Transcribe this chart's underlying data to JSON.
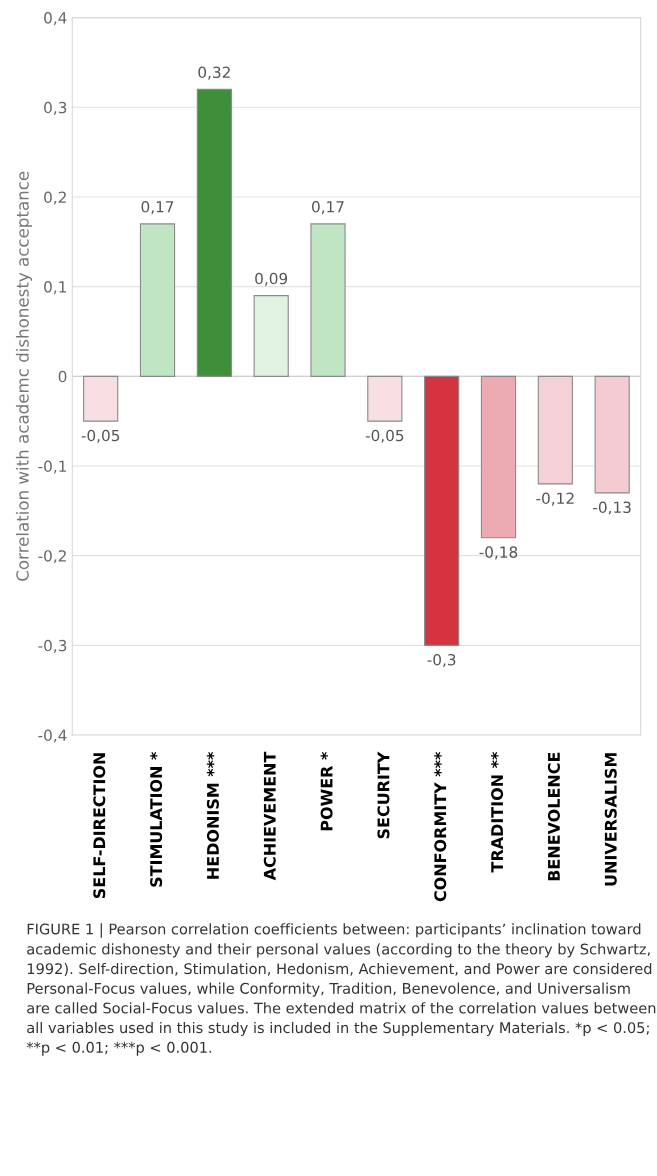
{
  "chart_data": {
    "type": "bar",
    "categories": [
      "SELF-DIRECTION",
      "STIMULATION *",
      "HEDONISM ***",
      "ACHIEVEMENT",
      "POWER *",
      "SECURITY",
      "CONFORMITY ***",
      "TRADITION **",
      "BENEVOLENCE",
      "UNIVERSALISM"
    ],
    "values": [
      -0.05,
      0.17,
      0.32,
      0.09,
      0.17,
      -0.05,
      -0.3,
      -0.18,
      -0.12,
      -0.13
    ],
    "value_labels": [
      "-0,05",
      "0,17",
      "0,32",
      "0,09",
      "0,17",
      "-0,05",
      "-0,3",
      "-0,18",
      "-0,12",
      "-0,13"
    ],
    "colors": [
      "#f7dfe3",
      "#bfe5c3",
      "#3f8f3a",
      "#e2f2e2",
      "#bfe5c3",
      "#f7dfe3",
      "#d3343f",
      "#eeaab3",
      "#f5d0d6",
      "#f3cbd1"
    ],
    "ylabel": "Correlation with academc dishonesty acceptance",
    "ylim": [
      -0.4,
      0.4
    ],
    "yticks": [
      {
        "value": -0.4,
        "label": "-0,4"
      },
      {
        "value": -0.3,
        "label": "-0,3"
      },
      {
        "value": -0.2,
        "label": "-0,2"
      },
      {
        "value": -0.1,
        "label": "-0,1"
      },
      {
        "value": 0,
        "label": "0"
      },
      {
        "value": 0.1,
        "label": "0,1"
      },
      {
        "value": 0.2,
        "label": "0,2"
      },
      {
        "value": 0.3,
        "label": "0,3"
      },
      {
        "value": 0.4,
        "label": "0,4"
      }
    ],
    "grid": "y",
    "annotations": [
      "FIGURE 1 | Pearson correlation coefficients between: participants’ inclination toward academic dishonesty and their personal values (according to the theory by Schwartz, 1992). Self-direction, Stimulation, Hedonism, Achievement, and Power are considered Personal-Focus values, while Conformity, Tradition, Benevolence, and Universalism are called Social-Focus values. The extended matrix of the correlation values between all variables used in this study is included in the Supplementary Materials. *p < 0.05; **p < 0.01; ***p < 0.001."
    ]
  }
}
